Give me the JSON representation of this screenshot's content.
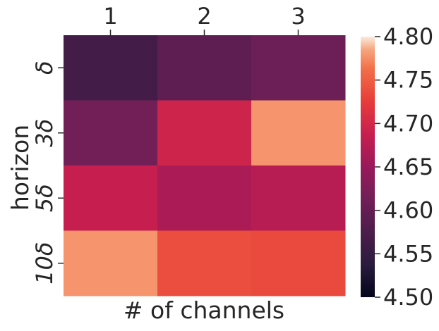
{
  "chart_data": {
    "type": "heatmap",
    "xlabel": "# of channels",
    "ylabel": "horizon",
    "x_categories": [
      "1",
      "2",
      "3"
    ],
    "y_categories": [
      "δ",
      "3δ",
      "5δ",
      "10δ"
    ],
    "values": [
      [
        4.565,
        4.595,
        4.608
      ],
      [
        4.615,
        4.695,
        4.778
      ],
      [
        4.688,
        4.665,
        4.675
      ],
      [
        4.778,
        4.738,
        4.735
      ]
    ],
    "colorbar": {
      "min": 4.5,
      "max": 4.8,
      "ticks": [
        "4.50",
        "4.55",
        "4.60",
        "4.65",
        "4.70",
        "4.75",
        "4.80"
      ],
      "colormap": "rocket"
    },
    "x_axis_position": "top",
    "grid": false
  }
}
